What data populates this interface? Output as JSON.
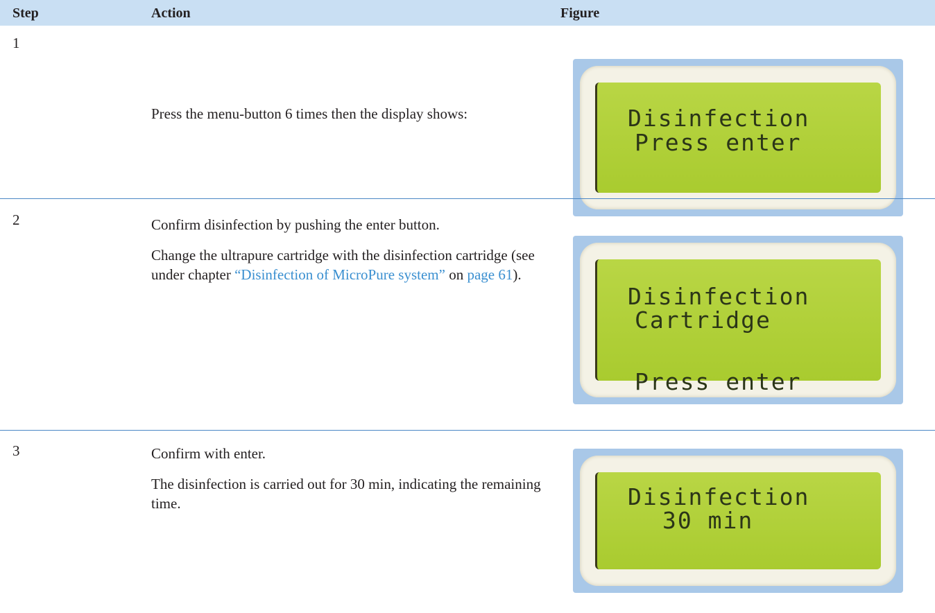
{
  "header": {
    "columns": [
      "Step",
      "Action",
      "Figure"
    ]
  },
  "rows": [
    {
      "step": "1",
      "action": [
        [
          {
            "text": "Press the menu-button 6 times then the display shows:"
          }
        ]
      ],
      "figure": {
        "lines": [
          "Disinfection",
          "Press enter"
        ]
      }
    },
    {
      "step": "2",
      "action": [
        [
          {
            "text": "Confirm disinfection by pushing the enter button."
          }
        ],
        [
          {
            "text": "Change the ultrapure cartridge with the disinfection cartridge (see under chapter "
          },
          {
            "text": "“Disinfection of MicroPure system”",
            "link": true
          },
          {
            "text": " on "
          },
          {
            "text": "page 61",
            "link": true
          },
          {
            "text": ")."
          }
        ]
      ],
      "figure": {
        "lines": [
          "Disinfection",
          "Cartridge",
          "Press enter"
        ]
      }
    },
    {
      "step": "3",
      "action": [
        [
          {
            "text": "Confirm with enter."
          }
        ],
        [
          {
            "text": "The disinfection is carried out for 30 min, indicating the remaining time."
          }
        ]
      ],
      "figure": {
        "lines": [
          "Disinfection",
          "30 min"
        ]
      }
    }
  ]
}
